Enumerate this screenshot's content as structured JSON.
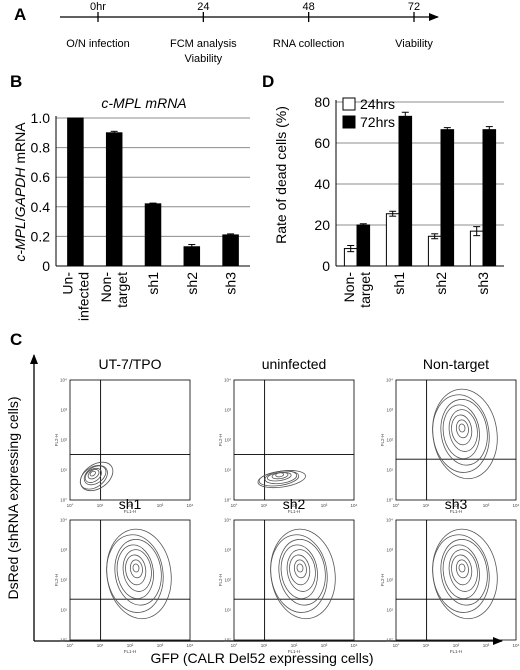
{
  "panels": {
    "A": {
      "letter": "A",
      "timeline": {
        "ticks": [
          {
            "time": 0,
            "top_label": "0hr",
            "bottom_labels": [
              "O/N infection"
            ]
          },
          {
            "time": 24,
            "top_label": "24",
            "bottom_labels": [
              "FCM analysis",
              "Viability"
            ]
          },
          {
            "time": 48,
            "top_label": "48",
            "bottom_labels": [
              "RNA collection"
            ]
          },
          {
            "time": 72,
            "top_label": "72",
            "bottom_labels": [
              "Viability"
            ]
          }
        ]
      }
    },
    "B": {
      "letter": "B"
    },
    "C": {
      "letter": "C",
      "xlabel": "GFP (CALR Del52 expressing cells)",
      "ylabel": "DsRed (shRNA expressing cells)",
      "plots": [
        {
          "title": "UT-7/TPO",
          "population": "low"
        },
        {
          "title": "uninfected",
          "population": "low-mid"
        },
        {
          "title": "Non-target",
          "population": "high"
        },
        {
          "title": "sh1",
          "population": "high"
        },
        {
          "title": "sh2",
          "population": "high"
        },
        {
          "title": "sh3",
          "population": "high"
        }
      ],
      "tick_labels": [
        "10°",
        "10¹",
        "10²",
        "10³",
        "10⁴"
      ],
      "x_axis_name": "FL1-H",
      "y_axis_name": "FL2-H"
    },
    "D": {
      "letter": "D"
    }
  },
  "chart_data": [
    {
      "type": "bar",
      "panel": "B",
      "title": "c-MPL mRNA",
      "ylabel_parts": [
        "c-MPL",
        "/",
        "GAPDH",
        " mRNA"
      ],
      "categories": [
        "Un-\ninfected",
        "Non-\ntarget",
        "sh1",
        "sh2",
        "sh3"
      ],
      "series": [
        {
          "values": [
            1.0,
            0.9,
            0.42,
            0.13,
            0.21
          ],
          "errors": [
            0.0,
            0.01,
            0.005,
            0.015,
            0.007
          ],
          "color": "#000000"
        }
      ],
      "ylim": [
        0,
        1.0
      ],
      "yticks": [
        "0",
        "0.2",
        "0.4",
        "0.6",
        "0.8",
        "1.0"
      ],
      "grid": true
    },
    {
      "type": "bar",
      "panel": "D",
      "ylabel": "Rate of dead cells (%)",
      "categories": [
        "Non-\ntarget",
        "sh1",
        "sh2",
        "sh3"
      ],
      "series": [
        {
          "name": "24hrs",
          "values": [
            8.5,
            25.5,
            14.5,
            17.0
          ],
          "errors": [
            1.5,
            1.2,
            1.2,
            2.2
          ],
          "color": "#ffffff"
        },
        {
          "name": "72hrs",
          "values": [
            20.0,
            73.0,
            66.5,
            66.5
          ],
          "errors": [
            0.6,
            2.0,
            1.0,
            1.5
          ],
          "color": "#000000"
        }
      ],
      "ylim": [
        0,
        80
      ],
      "yticks": [
        "0",
        "20",
        "40",
        "60",
        "80"
      ],
      "grid": true,
      "legend": "top-left"
    }
  ]
}
